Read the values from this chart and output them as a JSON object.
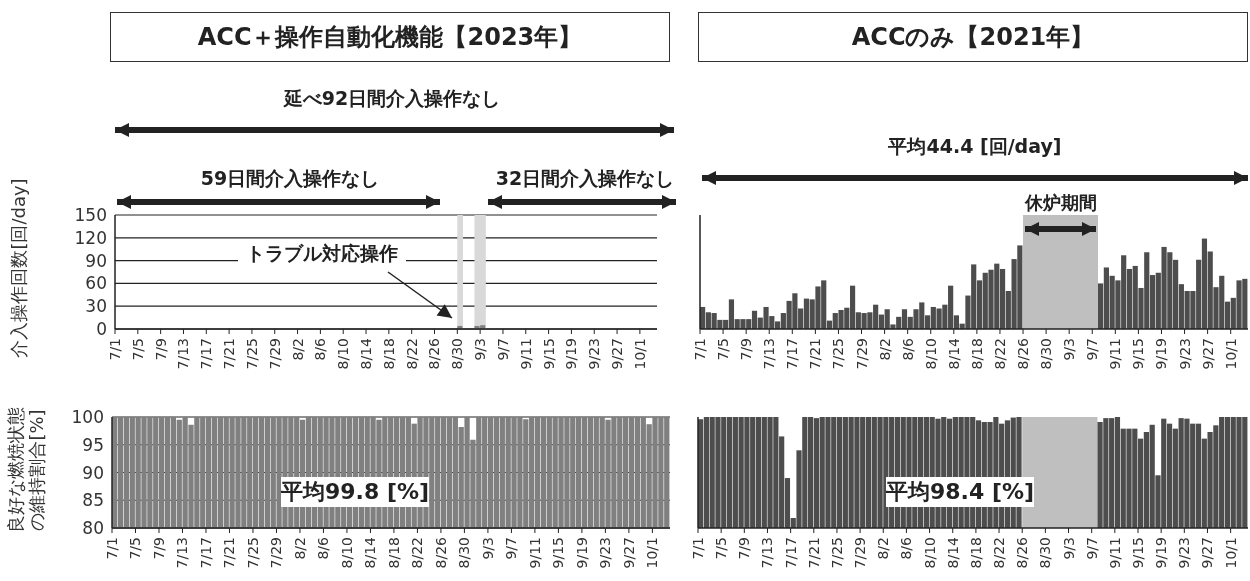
{
  "chart_data": [
    {
      "type": "bar",
      "title": "ACC＋操作自動化機能【2023年】",
      "ylabel": "介入操作回数[回/day]",
      "color": "#808080",
      "grid": "y",
      "ylim": [
        0,
        150
      ],
      "yticks": [
        0,
        30,
        60,
        90,
        120,
        150
      ],
      "xlim": [
        "--07-01",
        "--10-04"
      ],
      "xticks": [
        {
          "value": "--07-01",
          "label": "7/1"
        },
        {
          "value": "--07-05",
          "label": "7/5"
        },
        {
          "value": "--07-09",
          "label": "7/9"
        },
        {
          "value": "--07-13",
          "label": "7/13"
        },
        {
          "value": "--07-17",
          "label": "7/17"
        },
        {
          "value": "--07-21",
          "label": "7/21"
        },
        {
          "value": "--07-25",
          "label": "7/25"
        },
        {
          "value": "--07-29",
          "label": "7/29"
        },
        {
          "value": "--08-02",
          "label": "8/2"
        },
        {
          "value": "--08-06",
          "label": "8/6"
        },
        {
          "value": "--08-10",
          "label": "8/10"
        },
        {
          "value": "--08-14",
          "label": "8/14"
        },
        {
          "value": "--08-18",
          "label": "8/18"
        },
        {
          "value": "--08-22",
          "label": "8/22"
        },
        {
          "value": "--08-26",
          "label": "8/26"
        },
        {
          "value": "--08-30",
          "label": "8/30"
        },
        {
          "value": "--09-03",
          "label": "9/3"
        },
        {
          "value": "--09-07",
          "label": "9/7"
        },
        {
          "value": "--09-11",
          "label": "9/11"
        },
        {
          "value": "--09-15",
          "label": "9/15"
        },
        {
          "value": "--09-19",
          "label": "9/19"
        },
        {
          "value": "--09-23",
          "label": "9/23"
        },
        {
          "value": "--09-27",
          "label": "9/27"
        },
        {
          "value": "--10-01",
          "label": "10/1"
        }
      ],
      "x": [
        "--07-01",
        "--07-02",
        "--07-03",
        "--07-04",
        "--07-05",
        "--07-06",
        "--07-07",
        "--07-08",
        "--07-09",
        "--07-10",
        "--07-11",
        "--07-12",
        "--07-13",
        "--07-14",
        "--07-15",
        "--07-16",
        "--07-17",
        "--07-18",
        "--07-19",
        "--07-20",
        "--07-21",
        "--07-22",
        "--07-23",
        "--07-24",
        "--07-25",
        "--07-26",
        "--07-27",
        "--07-28",
        "--07-29",
        "--07-30",
        "--07-31",
        "--08-01",
        "--08-02",
        "--08-03",
        "--08-04",
        "--08-05",
        "--08-06",
        "--08-07",
        "--08-08",
        "--08-09",
        "--08-10",
        "--08-11",
        "--08-12",
        "--08-13",
        "--08-14",
        "--08-15",
        "--08-16",
        "--08-17",
        "--08-18",
        "--08-19",
        "--08-20",
        "--08-21",
        "--08-22",
        "--08-23",
        "--08-24",
        "--08-25",
        "--08-26",
        "--08-27",
        "--08-28",
        "--08-29",
        "--08-30",
        "--08-31",
        "--09-01",
        "--09-02",
        "--09-03",
        "--09-04",
        "--09-05",
        "--09-06",
        "--09-07",
        "--09-08",
        "--09-09",
        "--09-10",
        "--09-11",
        "--09-12",
        "--09-13",
        "--09-14",
        "--09-15",
        "--09-16",
        "--09-17",
        "--09-18",
        "--09-19",
        "--09-20",
        "--09-21",
        "--09-22",
        "--09-23",
        "--09-24",
        "--09-25",
        "--09-26",
        "--09-27",
        "--09-28",
        "--09-29",
        "--09-30",
        "--10-01",
        "--10-02",
        "--10-03"
      ],
      "values": [
        0,
        0,
        0,
        0,
        0,
        0,
        0,
        0,
        0,
        0,
        0,
        0,
        0,
        0,
        0,
        0,
        0,
        0,
        0,
        0,
        0,
        0,
        0,
        0,
        0,
        0,
        0,
        0,
        0,
        0,
        0,
        0,
        0,
        0,
        0,
        0,
        0,
        0,
        0,
        0,
        0,
        0,
        0,
        0,
        0,
        0,
        0,
        0,
        0,
        0,
        0,
        0,
        0,
        0,
        0,
        0,
        0,
        0,
        0,
        0,
        4,
        0,
        0,
        4,
        5,
        0,
        0,
        0,
        0,
        0,
        0,
        0,
        0,
        0,
        0,
        0,
        0,
        0,
        0,
        0,
        0,
        0,
        0,
        0,
        0,
        0,
        0,
        0,
        0,
        0,
        0,
        0,
        0,
        0,
        0
      ],
      "bands": [
        {
          "axis": "x",
          "from": "--08-30",
          "to": "--08-31",
          "color": "#d9d9d9"
        },
        {
          "axis": "x",
          "from": "--09-02",
          "to": "--09-04",
          "color": "#d9d9d9"
        }
      ],
      "annotations": [
        "延べ92日間介入操作なし",
        "59日間介入操作なし",
        "32日間介入操作なし",
        "トラブル対応操作"
      ]
    },
    {
      "type": "bar",
      "title": "ACCのみ【2021年】",
      "color": "#4d4d4d",
      "grid": "y",
      "ylim": [
        0,
        150
      ],
      "yticks": [
        0,
        30,
        60,
        90,
        120,
        150
      ],
      "tick_labels": "x",
      "xlim": [
        "--07-01",
        "--10-04"
      ],
      "xticks": [
        {
          "value": "--07-01",
          "label": "7/1"
        },
        {
          "value": "--07-05",
          "label": "7/5"
        },
        {
          "value": "--07-09",
          "label": "7/9"
        },
        {
          "value": "--07-13",
          "label": "7/13"
        },
        {
          "value": "--07-17",
          "label": "7/17"
        },
        {
          "value": "--07-21",
          "label": "7/21"
        },
        {
          "value": "--07-25",
          "label": "7/25"
        },
        {
          "value": "--07-29",
          "label": "7/29"
        },
        {
          "value": "--08-02",
          "label": "8/2"
        },
        {
          "value": "--08-06",
          "label": "8/6"
        },
        {
          "value": "--08-10",
          "label": "8/10"
        },
        {
          "value": "--08-14",
          "label": "8/14"
        },
        {
          "value": "--08-18",
          "label": "8/18"
        },
        {
          "value": "--08-22",
          "label": "8/22"
        },
        {
          "value": "--08-26",
          "label": "8/26"
        },
        {
          "value": "--08-30",
          "label": "8/30"
        },
        {
          "value": "--09-03",
          "label": "9/3"
        },
        {
          "value": "--09-07",
          "label": "9/7"
        },
        {
          "value": "--09-11",
          "label": "9/11"
        },
        {
          "value": "--09-15",
          "label": "9/15"
        },
        {
          "value": "--09-19",
          "label": "9/19"
        },
        {
          "value": "--09-23",
          "label": "9/23"
        },
        {
          "value": "--09-27",
          "label": "9/27"
        },
        {
          "value": "--10-01",
          "label": "10/1"
        }
      ],
      "x": [
        "--07-01",
        "--07-02",
        "--07-03",
        "--07-04",
        "--07-05",
        "--07-06",
        "--07-07",
        "--07-08",
        "--07-09",
        "--07-10",
        "--07-11",
        "--07-12",
        "--07-13",
        "--07-14",
        "--07-15",
        "--07-16",
        "--07-17",
        "--07-18",
        "--07-19",
        "--07-20",
        "--07-21",
        "--07-22",
        "--07-23",
        "--07-24",
        "--07-25",
        "--07-26",
        "--07-27",
        "--07-28",
        "--07-29",
        "--07-30",
        "--07-31",
        "--08-01",
        "--08-02",
        "--08-03",
        "--08-04",
        "--08-05",
        "--08-06",
        "--08-07",
        "--08-08",
        "--08-09",
        "--08-10",
        "--08-11",
        "--08-12",
        "--08-13",
        "--08-14",
        "--08-15",
        "--08-16",
        "--08-17",
        "--08-18",
        "--08-19",
        "--08-20",
        "--08-21",
        "--08-22",
        "--08-23",
        "--08-24",
        "--08-25",
        "--08-26",
        "--08-27",
        "--08-28",
        "--08-29",
        "--08-30",
        "--08-31",
        "--09-01",
        "--09-02",
        "--09-03",
        "--09-04",
        "--09-05",
        "--09-06",
        "--09-07",
        "--09-08",
        "--09-09",
        "--09-10",
        "--09-11",
        "--09-12",
        "--09-13",
        "--09-14",
        "--09-15",
        "--09-16",
        "--09-17",
        "--09-18",
        "--09-19",
        "--09-20",
        "--09-21",
        "--09-22",
        "--09-23",
        "--09-24",
        "--09-25",
        "--09-26",
        "--09-27",
        "--09-28",
        "--09-29",
        "--09-30",
        "--10-01",
        "--10-02",
        "--10-03"
      ],
      "values": [
        29,
        22,
        21,
        12,
        12,
        39,
        13,
        13,
        13,
        24,
        15,
        29,
        17,
        10,
        21,
        37,
        47,
        27,
        40,
        39,
        56,
        64,
        11,
        21,
        25,
        28,
        57,
        22,
        21,
        22,
        32,
        19,
        26,
        6,
        16,
        26,
        16,
        26,
        35,
        18,
        29,
        27,
        32,
        57,
        18,
        7,
        44,
        85,
        64,
        74,
        78,
        86,
        79,
        50,
        92,
        110,
        null,
        null,
        null,
        null,
        null,
        null,
        null,
        null,
        null,
        null,
        null,
        null,
        null,
        60,
        81,
        70,
        64,
        97,
        79,
        83,
        54,
        101,
        71,
        74,
        108,
        101,
        91,
        59,
        50,
        50,
        91,
        119,
        102,
        55,
        70,
        36,
        41,
        64,
        66
      ],
      "bands": [
        {
          "axis": "x",
          "from": "--08-26",
          "to": "--09-08",
          "label": "休炉期間",
          "color": "#bfbfbf"
        }
      ],
      "annotations": [
        "平均44.4 [回/day]"
      ]
    },
    {
      "type": "bar",
      "ylabel": "良好な燃焼状態の維持割合[%]",
      "color": "#808080",
      "grid": "y",
      "ylim": [
        80,
        100
      ],
      "yticks": [
        80,
        85,
        90,
        95,
        100
      ],
      "xlim": [
        "--07-01",
        "--10-04"
      ],
      "xticks": [
        {
          "value": "--07-01",
          "label": "7/1"
        },
        {
          "value": "--07-05",
          "label": "7/5"
        },
        {
          "value": "--07-09",
          "label": "7/9"
        },
        {
          "value": "--07-13",
          "label": "7/13"
        },
        {
          "value": "--07-17",
          "label": "7/17"
        },
        {
          "value": "--07-21",
          "label": "7/21"
        },
        {
          "value": "--07-25",
          "label": "7/25"
        },
        {
          "value": "--07-29",
          "label": "7/29"
        },
        {
          "value": "--08-02",
          "label": "8/2"
        },
        {
          "value": "--08-06",
          "label": "8/6"
        },
        {
          "value": "--08-10",
          "label": "8/10"
        },
        {
          "value": "--08-14",
          "label": "8/14"
        },
        {
          "value": "--08-18",
          "label": "8/18"
        },
        {
          "value": "--08-22",
          "label": "8/22"
        },
        {
          "value": "--08-26",
          "label": "8/26"
        },
        {
          "value": "--08-30",
          "label": "8/30"
        },
        {
          "value": "--09-03",
          "label": "9/3"
        },
        {
          "value": "--09-07",
          "label": "9/7"
        },
        {
          "value": "--09-11",
          "label": "9/11"
        },
        {
          "value": "--09-15",
          "label": "9/15"
        },
        {
          "value": "--09-19",
          "label": "9/19"
        },
        {
          "value": "--09-23",
          "label": "9/23"
        },
        {
          "value": "--09-27",
          "label": "9/27"
        },
        {
          "value": "--10-01",
          "label": "10/1"
        }
      ],
      "x": [
        "--07-01",
        "--07-02",
        "--07-03",
        "--07-04",
        "--07-05",
        "--07-06",
        "--07-07",
        "--07-08",
        "--07-09",
        "--07-10",
        "--07-11",
        "--07-12",
        "--07-13",
        "--07-14",
        "--07-15",
        "--07-16",
        "--07-17",
        "--07-18",
        "--07-19",
        "--07-20",
        "--07-21",
        "--07-22",
        "--07-23",
        "--07-24",
        "--07-25",
        "--07-26",
        "--07-27",
        "--07-28",
        "--07-29",
        "--07-30",
        "--07-31",
        "--08-01",
        "--08-02",
        "--08-03",
        "--08-04",
        "--08-05",
        "--08-06",
        "--08-07",
        "--08-08",
        "--08-09",
        "--08-10",
        "--08-11",
        "--08-12",
        "--08-13",
        "--08-14",
        "--08-15",
        "--08-16",
        "--08-17",
        "--08-18",
        "--08-19",
        "--08-20",
        "--08-21",
        "--08-22",
        "--08-23",
        "--08-24",
        "--08-25",
        "--08-26",
        "--08-27",
        "--08-28",
        "--08-29",
        "--08-30",
        "--08-31",
        "--09-01",
        "--09-02",
        "--09-03",
        "--09-04",
        "--09-05",
        "--09-06",
        "--09-07",
        "--09-08",
        "--09-09",
        "--09-10",
        "--09-11",
        "--09-12",
        "--09-13",
        "--09-14",
        "--09-15",
        "--09-16",
        "--09-17",
        "--09-18",
        "--09-19",
        "--09-20",
        "--09-21",
        "--09-22",
        "--09-23",
        "--09-24",
        "--09-25",
        "--09-26",
        "--09-27",
        "--09-28",
        "--09-29",
        "--09-30",
        "--10-01",
        "--10-02",
        "--10-03"
      ],
      "values": [
        100,
        100,
        100,
        100,
        100,
        100,
        100,
        100,
        100,
        100,
        100,
        99.5,
        100,
        98.6,
        100,
        100,
        100,
        100,
        100,
        100,
        100,
        100,
        100,
        100,
        100,
        100,
        100,
        100,
        100,
        100,
        100,
        100,
        99.5,
        100,
        100,
        100,
        100,
        100,
        100,
        100,
        100,
        100,
        100,
        100,
        100,
        99.5,
        100,
        100,
        100,
        100,
        100,
        98.8,
        100,
        100,
        100,
        100,
        100,
        100,
        100,
        98.2,
        100,
        95.9,
        100,
        100,
        100,
        100,
        100,
        100,
        100,
        100,
        99.6,
        100,
        100,
        100,
        100,
        100,
        100,
        100,
        100,
        100,
        100,
        100,
        100,
        100,
        99.5,
        100,
        100,
        100,
        100,
        100,
        100,
        98.7,
        100,
        100,
        100
      ],
      "annotations": [
        "平均99.8 [%]"
      ]
    },
    {
      "type": "bar",
      "color": "#4d4d4d",
      "grid": "y",
      "ylim": [
        80,
        100
      ],
      "yticks": [
        80,
        85,
        90,
        95,
        100
      ],
      "tick_labels": "x",
      "xlim": [
        "--07-01",
        "--10-04"
      ],
      "xticks": [
        {
          "value": "--07-01",
          "label": "7/1"
        },
        {
          "value": "--07-05",
          "label": "7/5"
        },
        {
          "value": "--07-09",
          "label": "7/9"
        },
        {
          "value": "--07-13",
          "label": "7/13"
        },
        {
          "value": "--07-17",
          "label": "7/17"
        },
        {
          "value": "--07-21",
          "label": "7/21"
        },
        {
          "value": "--07-25",
          "label": "7/25"
        },
        {
          "value": "--07-29",
          "label": "7/29"
        },
        {
          "value": "--08-02",
          "label": "8/2"
        },
        {
          "value": "--08-06",
          "label": "8/6"
        },
        {
          "value": "--08-10",
          "label": "8/10"
        },
        {
          "value": "--08-14",
          "label": "8/14"
        },
        {
          "value": "--08-18",
          "label": "8/18"
        },
        {
          "value": "--08-22",
          "label": "8/22"
        },
        {
          "value": "--08-26",
          "label": "8/26"
        },
        {
          "value": "--08-30",
          "label": "8/30"
        },
        {
          "value": "--09-03",
          "label": "9/3"
        },
        {
          "value": "--09-07",
          "label": "9/7"
        },
        {
          "value": "--09-11",
          "label": "9/11"
        },
        {
          "value": "--09-15",
          "label": "9/15"
        },
        {
          "value": "--09-19",
          "label": "9/19"
        },
        {
          "value": "--09-23",
          "label": "9/23"
        },
        {
          "value": "--09-27",
          "label": "9/27"
        },
        {
          "value": "--10-01",
          "label": "10/1"
        }
      ],
      "x": [
        "--07-01",
        "--07-02",
        "--07-03",
        "--07-04",
        "--07-05",
        "--07-06",
        "--07-07",
        "--07-08",
        "--07-09",
        "--07-10",
        "--07-11",
        "--07-12",
        "--07-13",
        "--07-14",
        "--07-15",
        "--07-16",
        "--07-17",
        "--07-18",
        "--07-19",
        "--07-20",
        "--07-21",
        "--07-22",
        "--07-23",
        "--07-24",
        "--07-25",
        "--07-26",
        "--07-27",
        "--07-28",
        "--07-29",
        "--07-30",
        "--07-31",
        "--08-01",
        "--08-02",
        "--08-03",
        "--08-04",
        "--08-05",
        "--08-06",
        "--08-07",
        "--08-08",
        "--08-09",
        "--08-10",
        "--08-11",
        "--08-12",
        "--08-13",
        "--08-14",
        "--08-15",
        "--08-16",
        "--08-17",
        "--08-18",
        "--08-19",
        "--08-20",
        "--08-21",
        "--08-22",
        "--08-23",
        "--08-24",
        "--08-25",
        "--08-26",
        "--08-27",
        "--08-28",
        "--08-29",
        "--08-30",
        "--08-31",
        "--09-01",
        "--09-02",
        "--09-03",
        "--09-04",
        "--09-05",
        "--09-06",
        "--09-07",
        "--09-08",
        "--09-09",
        "--09-10",
        "--09-11",
        "--09-12",
        "--09-13",
        "--09-14",
        "--09-15",
        "--09-16",
        "--09-17",
        "--09-18",
        "--09-19",
        "--09-20",
        "--09-21",
        "--09-22",
        "--09-23",
        "--09-24",
        "--09-25",
        "--09-26",
        "--09-27",
        "--09-28",
        "--09-29",
        "--09-30",
        "--10-01",
        "--10-02",
        "--10-03"
      ],
      "values": [
        99.6,
        100,
        100,
        100,
        100,
        100,
        100,
        100,
        100,
        100,
        100,
        100,
        100,
        100,
        96.5,
        89,
        81.8,
        94,
        100,
        100,
        99.8,
        100,
        100,
        100,
        100,
        100,
        100,
        100,
        100,
        100,
        100,
        100,
        100,
        100,
        100,
        100,
        100,
        100,
        100,
        100,
        100,
        99.7,
        100,
        99.7,
        100,
        100,
        100,
        100,
        99.4,
        99.1,
        99.1,
        100,
        98.8,
        99.4,
        99.9,
        100,
        null,
        null,
        null,
        null,
        null,
        null,
        null,
        null,
        null,
        null,
        null,
        null,
        null,
        99.1,
        99.8,
        99.8,
        100,
        97.9,
        97.9,
        97.9,
        96.1,
        97.3,
        98.6,
        89.5,
        99.7,
        98.8,
        97.9,
        99.8,
        99.7,
        98.8,
        98.8,
        96.1,
        97.3,
        98.5,
        100,
        100,
        100,
        100,
        100
      ],
      "bands": [
        {
          "axis": "x",
          "from": "--08-26",
          "to": "--09-08",
          "color": "#bfbfbf"
        }
      ],
      "annotations": [
        "平均98.4 [%]"
      ]
    }
  ]
}
